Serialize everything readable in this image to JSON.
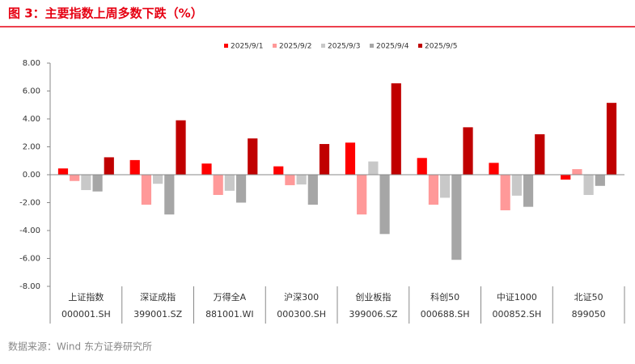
{
  "chart_data": {
    "type": "bar",
    "title": "图 3：主要指数上周多数下跌（%）",
    "source": "数据来源：Wind 东方证券研究所",
    "categories": [
      "上证指数",
      "深证成指",
      "万得全A",
      "沪深300",
      "创业板指",
      "科创50",
      "中证1000",
      "北证50"
    ],
    "category_codes": [
      "000001.SH",
      "399001.SZ",
      "881001.WI",
      "000300.SH",
      "399006.SZ",
      "000688.SH",
      "000852.SH",
      "899050"
    ],
    "series": [
      {
        "name": "2025/9/1",
        "color": "#ff0000",
        "values": [
          0.45,
          1.05,
          0.8,
          0.6,
          2.3,
          1.2,
          0.85,
          -0.35
        ]
      },
      {
        "name": "2025/9/2",
        "color": "#ff9999",
        "values": [
          -0.45,
          -2.15,
          -1.45,
          -0.75,
          -2.85,
          -2.15,
          -2.55,
          0.4
        ]
      },
      {
        "name": "2025/9/3",
        "color": "#c8c8c8",
        "values": [
          -1.1,
          -0.65,
          -1.15,
          -0.7,
          0.95,
          -1.65,
          -1.5,
          -1.45
        ]
      },
      {
        "name": "2025/9/4",
        "color": "#a6a6a6",
        "values": [
          -1.2,
          -2.85,
          -2.0,
          -2.15,
          -4.25,
          -6.1,
          -2.3,
          -0.8
        ]
      },
      {
        "name": "2025/9/5",
        "color": "#c00000",
        "values": [
          1.25,
          3.9,
          2.6,
          2.2,
          6.55,
          3.4,
          2.9,
          5.15
        ]
      }
    ],
    "ylim": [
      -8,
      8
    ],
    "yticks": [
      {
        "value": -8,
        "label": "-8.00"
      },
      {
        "value": -6,
        "label": "-6.00"
      },
      {
        "value": -4,
        "label": "-4.00"
      },
      {
        "value": -2,
        "label": "-2.00"
      },
      {
        "value": 0,
        "label": "0.00"
      },
      {
        "value": 2,
        "label": "2.00"
      },
      {
        "value": 4,
        "label": "4.00"
      },
      {
        "value": 6,
        "label": "6.00"
      },
      {
        "value": 8,
        "label": "8.00"
      }
    ],
    "legend": "top"
  }
}
